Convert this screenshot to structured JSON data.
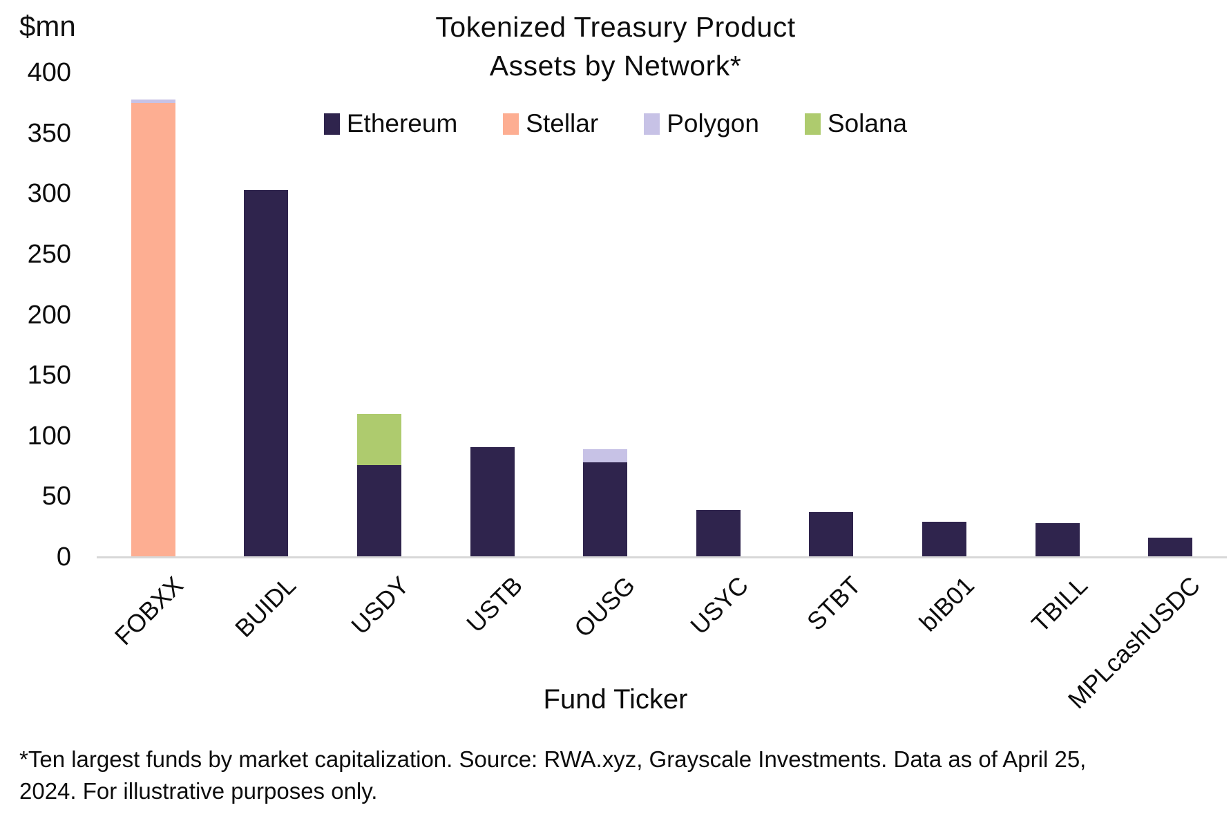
{
  "page": {
    "y_axis_unit": "$mn",
    "title_line1": "Tokenized Treasury Product",
    "title_line2": "Assets by Network*",
    "x_axis_title": "Fund Ticker",
    "footnote": "*Ten largest funds by market capitalization. Source: RWA.xyz, Grayscale Investments. Data as of April 25, 2024. For illustrative purposes only."
  },
  "chart_data": {
    "type": "bar",
    "stacked": true,
    "title": "Tokenized Treasury Product Assets by Network*",
    "xlabel": "Fund Ticker",
    "ylabel": "$mn",
    "ylim": [
      0,
      400
    ],
    "ytick_step": 50,
    "yticks": [
      0,
      50,
      100,
      150,
      200,
      250,
      300,
      350,
      400
    ],
    "grid": false,
    "legend_position": "top-center",
    "categories": [
      "FOBXX",
      "BUIDL",
      "USDY",
      "USTB",
      "OUSG",
      "USYC",
      "STBT",
      "bIB01",
      "TBILL",
      "MPLcashUSDC"
    ],
    "series": [
      {
        "name": "Ethereum",
        "color": "#2F244D",
        "values": [
          0,
          303,
          76,
          91,
          78,
          39,
          37,
          29,
          28,
          16
        ]
      },
      {
        "name": "Stellar",
        "color": "#FDAE92",
        "values": [
          375,
          0,
          0,
          0,
          0,
          0,
          0,
          0,
          0,
          0
        ]
      },
      {
        "name": "Polygon",
        "color": "#C7C2E6",
        "values": [
          3,
          0,
          0,
          0,
          11,
          0,
          0,
          0,
          0,
          0
        ]
      },
      {
        "name": "Solana",
        "color": "#AECB6E",
        "values": [
          0,
          0,
          42,
          0,
          0,
          0,
          0,
          0,
          0,
          0
        ]
      }
    ],
    "totals": [
      378,
      303,
      118,
      91,
      89,
      39,
      37,
      29,
      28,
      16
    ],
    "colors": {
      "ethereum": "#2F244D",
      "stellar": "#FDAE92",
      "polygon": "#C7C2E6",
      "solana": "#AECB6E",
      "axis_line": "#D8D8D8",
      "text": "#0D0D0D"
    }
  }
}
